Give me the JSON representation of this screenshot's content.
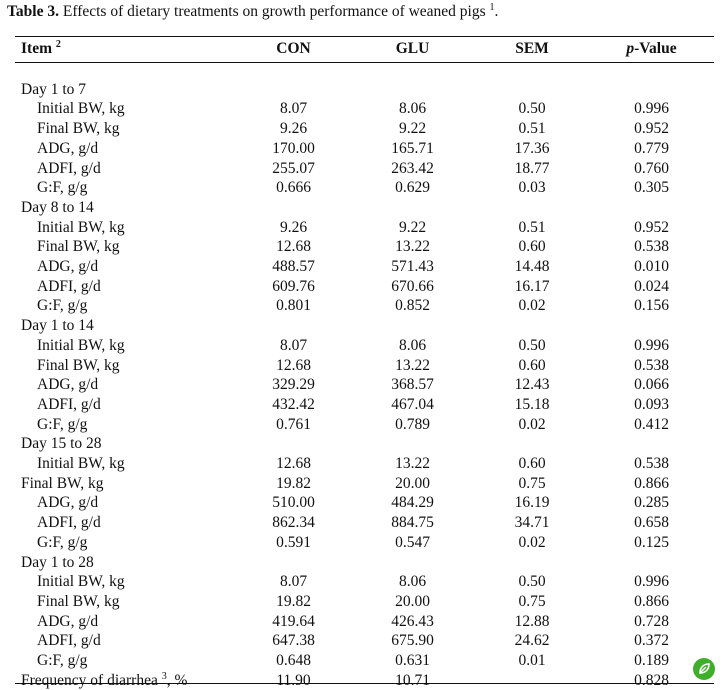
{
  "caption": {
    "label": "Table 3.",
    "text": " Effects of dietary treatments on growth performance of weaned pigs",
    "footnote_ref": "1",
    "end": "."
  },
  "columns": {
    "item": "Item",
    "item_sup": "2",
    "con": "CON",
    "glu": "GLU",
    "sem": "SEM",
    "p_italic": "p",
    "p_rest": "-Value"
  },
  "rows": [
    {
      "label": "Day 1 to 7",
      "indent": false,
      "con": "",
      "glu": "",
      "sem": "",
      "p": ""
    },
    {
      "label": "Initial BW, kg",
      "indent": true,
      "con": "8.07",
      "glu": "8.06",
      "sem": "0.50",
      "p": "0.996"
    },
    {
      "label": "Final BW, kg",
      "indent": true,
      "con": "9.26",
      "glu": "9.22",
      "sem": "0.51",
      "p": "0.952"
    },
    {
      "label": "ADG, g/d",
      "indent": true,
      "con": "170.00",
      "glu": "165.71",
      "sem": "17.36",
      "p": "0.779"
    },
    {
      "label": "ADFI, g/d",
      "indent": true,
      "con": "255.07",
      "glu": "263.42",
      "sem": "18.77",
      "p": "0.760"
    },
    {
      "label": "G:F, g/g",
      "indent": true,
      "con": "0.666",
      "glu": "0.629",
      "sem": "0.03",
      "p": "0.305"
    },
    {
      "label": "Day 8 to 14",
      "indent": false,
      "con": "",
      "glu": "",
      "sem": "",
      "p": ""
    },
    {
      "label": "Initial BW, kg",
      "indent": true,
      "con": "9.26",
      "glu": "9.22",
      "sem": "0.51",
      "p": "0.952"
    },
    {
      "label": "Final BW, kg",
      "indent": true,
      "con": "12.68",
      "glu": "13.22",
      "sem": "0.60",
      "p": "0.538"
    },
    {
      "label": "ADG, g/d",
      "indent": true,
      "con": "488.57",
      "glu": "571.43",
      "sem": "14.48",
      "p": "0.010"
    },
    {
      "label": "ADFI, g/d",
      "indent": true,
      "con": "609.76",
      "glu": "670.66",
      "sem": "16.17",
      "p": "0.024"
    },
    {
      "label": "G:F, g/g",
      "indent": true,
      "con": "0.801",
      "glu": "0.852",
      "sem": "0.02",
      "p": "0.156"
    },
    {
      "label": "Day 1 to 14",
      "indent": false,
      "con": "",
      "glu": "",
      "sem": "",
      "p": ""
    },
    {
      "label": "Initial BW, kg",
      "indent": true,
      "con": "8.07",
      "glu": "8.06",
      "sem": "0.50",
      "p": "0.996"
    },
    {
      "label": "Final BW, kg",
      "indent": true,
      "con": "12.68",
      "glu": "13.22",
      "sem": "0.60",
      "p": "0.538"
    },
    {
      "label": "ADG, g/d",
      "indent": true,
      "con": "329.29",
      "glu": "368.57",
      "sem": "12.43",
      "p": "0.066"
    },
    {
      "label": "ADFI, g/d",
      "indent": true,
      "con": "432.42",
      "glu": "467.04",
      "sem": "15.18",
      "p": "0.093"
    },
    {
      "label": "G:F, g/g",
      "indent": true,
      "con": "0.761",
      "glu": "0.789",
      "sem": "0.02",
      "p": "0.412"
    },
    {
      "label": "Day 15 to 28",
      "indent": false,
      "con": "",
      "glu": "",
      "sem": "",
      "p": ""
    },
    {
      "label": "Initial BW, kg",
      "indent": true,
      "con": "12.68",
      "glu": "13.22",
      "sem": "0.60",
      "p": "0.538"
    },
    {
      "label": "Final BW, kg",
      "indent": false,
      "con": "19.82",
      "glu": "20.00",
      "sem": "0.75",
      "p": "0.866"
    },
    {
      "label": "ADG, g/d",
      "indent": true,
      "con": "510.00",
      "glu": "484.29",
      "sem": "16.19",
      "p": "0.285"
    },
    {
      "label": "ADFI, g/d",
      "indent": true,
      "con": "862.34",
      "glu": "884.75",
      "sem": "34.71",
      "p": "0.658"
    },
    {
      "label": "G:F, g/g",
      "indent": true,
      "con": "0.591",
      "glu": "0.547",
      "sem": "0.02",
      "p": "0.125"
    },
    {
      "label": "Day 1 to 28",
      "indent": false,
      "con": "",
      "glu": "",
      "sem": "",
      "p": ""
    },
    {
      "label": "Initial BW, kg",
      "indent": true,
      "con": "8.07",
      "glu": "8.06",
      "sem": "0.50",
      "p": "0.996"
    },
    {
      "label": "Final BW, kg",
      "indent": true,
      "con": "19.82",
      "glu": "20.00",
      "sem": "0.75",
      "p": "0.866"
    },
    {
      "label": "ADG, g/d",
      "indent": true,
      "con": "419.64",
      "glu": "426.43",
      "sem": "12.88",
      "p": "0.728"
    },
    {
      "label": "ADFI, g/d",
      "indent": true,
      "con": "647.38",
      "glu": "675.90",
      "sem": "24.62",
      "p": "0.372"
    },
    {
      "label": "G:F, g/g",
      "indent": true,
      "con": "0.648",
      "glu": "0.631",
      "sem": "0.01",
      "p": "0.189"
    },
    {
      "label": "Frequency of diarrhea",
      "label_sup": "3",
      "label_tail": ", %",
      "indent": false,
      "con": "11.90",
      "glu": "10.71",
      "sem": "",
      "p": "0.828"
    }
  ],
  "badge": {
    "icon": "leaf-icon",
    "color": "#3fae2a"
  }
}
